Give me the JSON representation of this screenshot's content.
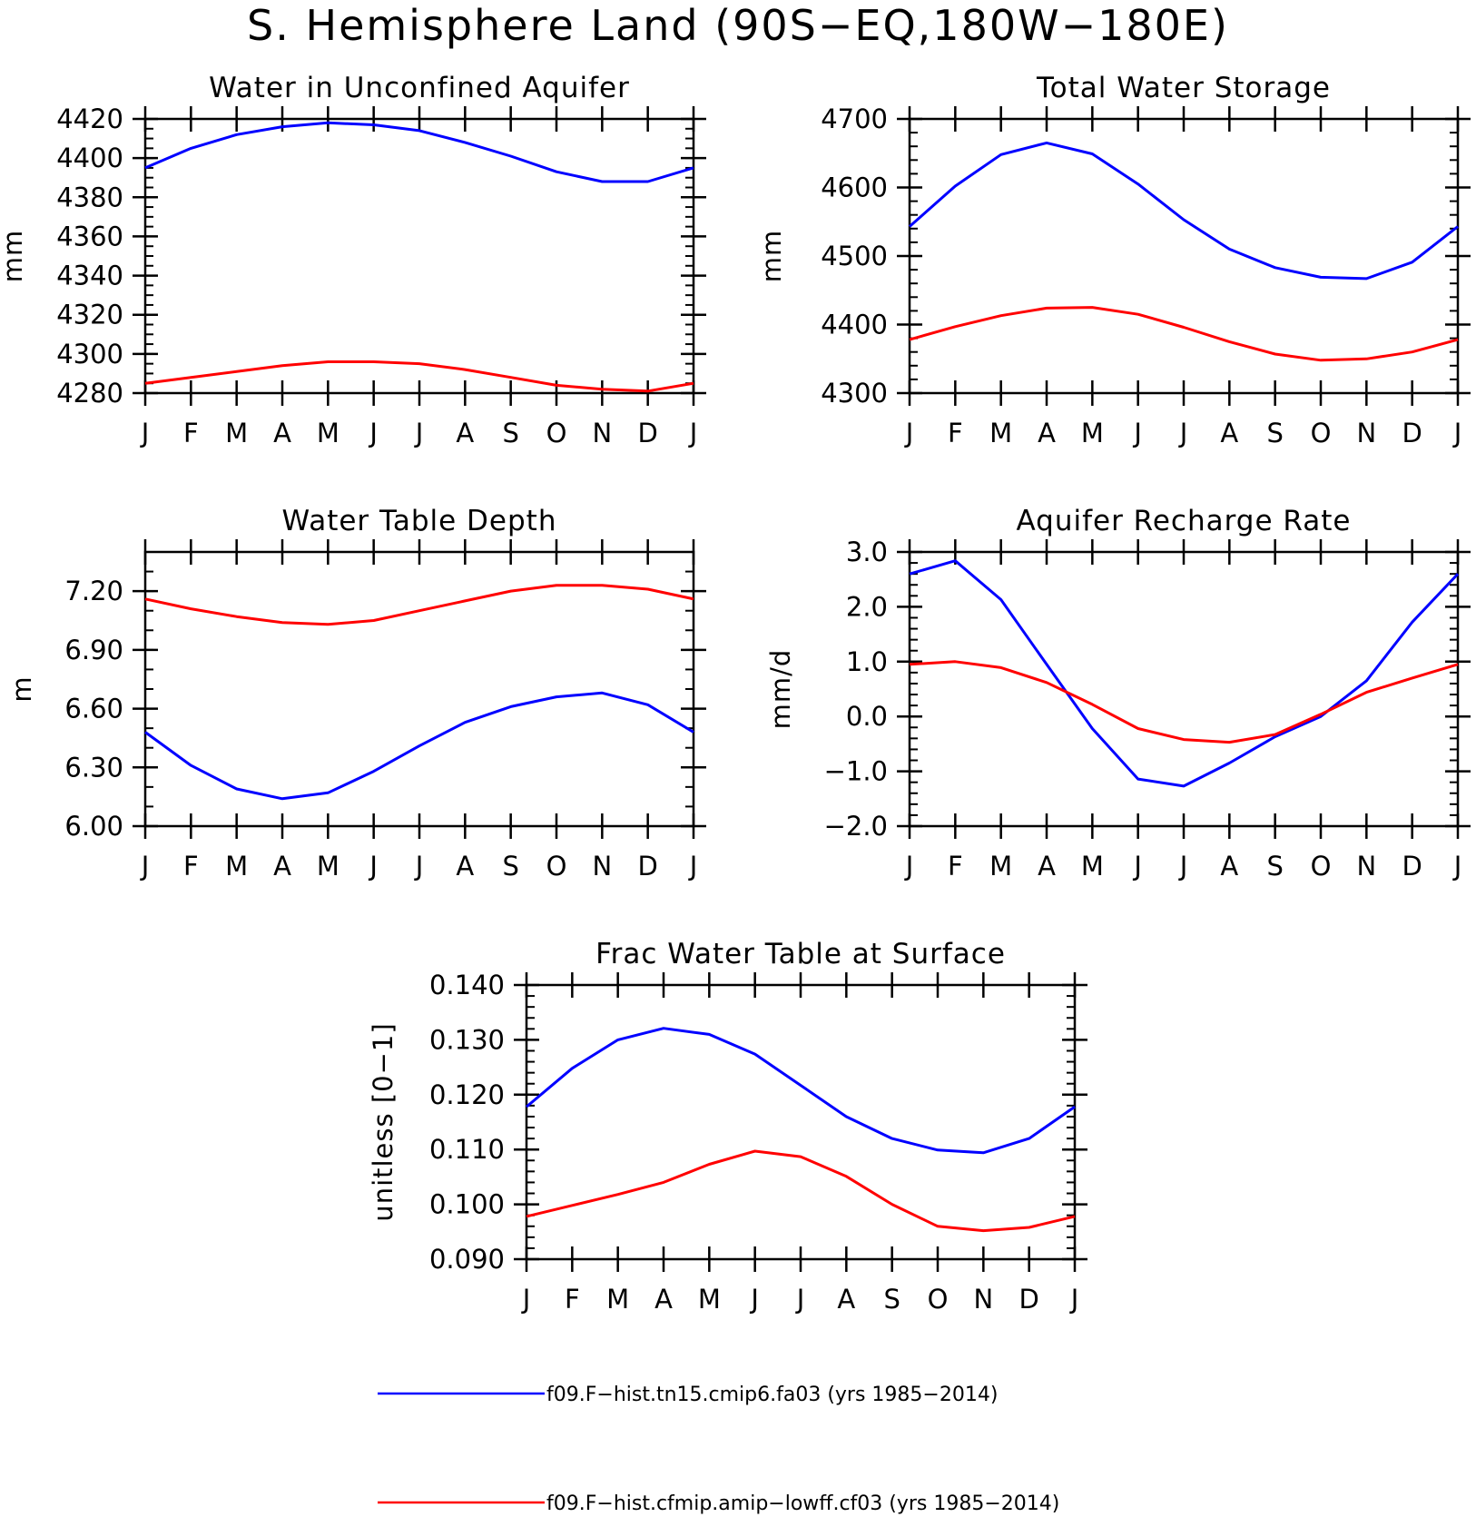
{
  "page_title": "S. Hemisphere Land (90S−EQ,180W−180E)",
  "legend": [
    {
      "label": "f09.F−hist.tn15.cmip6.fa03 (yrs 1985−2014)",
      "color": "#0000ff"
    },
    {
      "label": "f09.F−hist.cfmip.amip−lowff.cf03 (yrs 1985−2014)",
      "color": "#ff0000"
    }
  ],
  "chart_data": [
    {
      "type": "line",
      "title": "Water in Unconfined Aquifer",
      "ylabel": "mm",
      "xlabel": "",
      "categories": [
        "J",
        "F",
        "M",
        "A",
        "M",
        "J",
        "J",
        "A",
        "S",
        "O",
        "N",
        "D",
        "J"
      ],
      "ylim": [
        4280,
        4420
      ],
      "yticks": [
        4280,
        4300,
        4320,
        4340,
        4360,
        4380,
        4400,
        4420
      ],
      "ytick_labels": [
        "4280",
        "4300",
        "4320",
        "4340",
        "4360",
        "4380",
        "4400",
        "4420"
      ],
      "minor_step": 5,
      "grid": false,
      "series": [
        {
          "color": "#0000ff",
          "values": [
            4395,
            4405,
            4412,
            4416,
            4418,
            4417,
            4414,
            4408,
            4401,
            4393,
            4388,
            4388,
            4395
          ]
        },
        {
          "color": "#ff0000",
          "values": [
            4285,
            4288,
            4291,
            4294,
            4296,
            4296,
            4295,
            4292,
            4288,
            4284,
            4282,
            4281,
            4285
          ]
        }
      ]
    },
    {
      "type": "line",
      "title": "Total Water Storage",
      "ylabel": "mm",
      "xlabel": "",
      "categories": [
        "J",
        "F",
        "M",
        "A",
        "M",
        "J",
        "J",
        "A",
        "S",
        "O",
        "N",
        "D",
        "J"
      ],
      "ylim": [
        4300,
        4700
      ],
      "yticks": [
        4300,
        4400,
        4500,
        4600,
        4700
      ],
      "ytick_labels": [
        "4300",
        "4400",
        "4500",
        "4600",
        "4700"
      ],
      "minor_step": 20,
      "grid": false,
      "series": [
        {
          "color": "#0000ff",
          "values": [
            4543,
            4602,
            4648,
            4665,
            4649,
            4605,
            4553,
            4510,
            4483,
            4469,
            4467,
            4491,
            4543
          ]
        },
        {
          "color": "#ff0000",
          "values": [
            4378,
            4397,
            4413,
            4424,
            4425,
            4415,
            4396,
            4375,
            4357,
            4348,
            4350,
            4360,
            4378
          ]
        }
      ]
    },
    {
      "type": "line",
      "title": "Water Table Depth",
      "ylabel": "m",
      "xlabel": "",
      "categories": [
        "J",
        "F",
        "M",
        "A",
        "M",
        "J",
        "J",
        "A",
        "S",
        "O",
        "N",
        "D",
        "J"
      ],
      "ylim": [
        6.0,
        7.4
      ],
      "yticks": [
        6.0,
        6.3,
        6.6,
        6.9,
        7.2
      ],
      "ytick_labels": [
        "6.00",
        "6.30",
        "6.60",
        "6.90",
        "7.20"
      ],
      "minor_step": 0.1,
      "grid": false,
      "series": [
        {
          "color": "#0000ff",
          "values": [
            6.48,
            6.31,
            6.19,
            6.14,
            6.17,
            6.28,
            6.41,
            6.53,
            6.61,
            6.66,
            6.68,
            6.62,
            6.48
          ]
        },
        {
          "color": "#ff0000",
          "values": [
            7.16,
            7.11,
            7.07,
            7.04,
            7.03,
            7.05,
            7.1,
            7.15,
            7.2,
            7.23,
            7.23,
            7.21,
            7.16
          ]
        }
      ]
    },
    {
      "type": "line",
      "title": "Aquifer Recharge Rate",
      "ylabel": "mm/d",
      "xlabel": "",
      "categories": [
        "J",
        "F",
        "M",
        "A",
        "M",
        "J",
        "J",
        "A",
        "S",
        "O",
        "N",
        "D",
        "J"
      ],
      "ylim": [
        -2.0,
        3.0
      ],
      "yticks": [
        -2.0,
        -1.0,
        0.0,
        1.0,
        2.0,
        3.0
      ],
      "ytick_labels": [
        "−2.0",
        "−1.0",
        "0.0",
        "1.0",
        "2.0",
        "3.0"
      ],
      "minor_step": 0.2,
      "grid": false,
      "series": [
        {
          "color": "#0000ff",
          "values": [
            2.6,
            2.84,
            2.13,
            0.95,
            -0.22,
            -1.14,
            -1.27,
            -0.85,
            -0.37,
            0.0,
            0.65,
            1.72,
            2.6
          ]
        },
        {
          "color": "#ff0000",
          "values": [
            0.95,
            1.0,
            0.89,
            0.62,
            0.22,
            -0.22,
            -0.42,
            -0.47,
            -0.33,
            0.04,
            0.44,
            0.7,
            0.95
          ]
        }
      ]
    },
    {
      "type": "line",
      "title": "Frac Water Table at Surface",
      "ylabel": "unitless [0−1]",
      "xlabel": "",
      "categories": [
        "J",
        "F",
        "M",
        "A",
        "M",
        "J",
        "J",
        "A",
        "S",
        "O",
        "N",
        "D",
        "J"
      ],
      "ylim": [
        0.09,
        0.14
      ],
      "yticks": [
        0.09,
        0.1,
        0.11,
        0.12,
        0.13,
        0.14
      ],
      "ytick_labels": [
        "0.090",
        "0.100",
        "0.110",
        "0.120",
        "0.130",
        "0.140"
      ],
      "minor_step": 0.002,
      "grid": false,
      "series": [
        {
          "color": "#0000ff",
          "values": [
            0.1178,
            0.1248,
            0.13,
            0.1321,
            0.131,
            0.1274,
            0.1217,
            0.116,
            0.112,
            0.1099,
            0.1094,
            0.112,
            0.1178
          ]
        },
        {
          "color": "#ff0000",
          "values": [
            0.0978,
            0.0998,
            0.1018,
            0.104,
            0.1073,
            0.1097,
            0.1087,
            0.1051,
            0.1,
            0.096,
            0.0952,
            0.0958,
            0.0978
          ]
        }
      ]
    }
  ]
}
